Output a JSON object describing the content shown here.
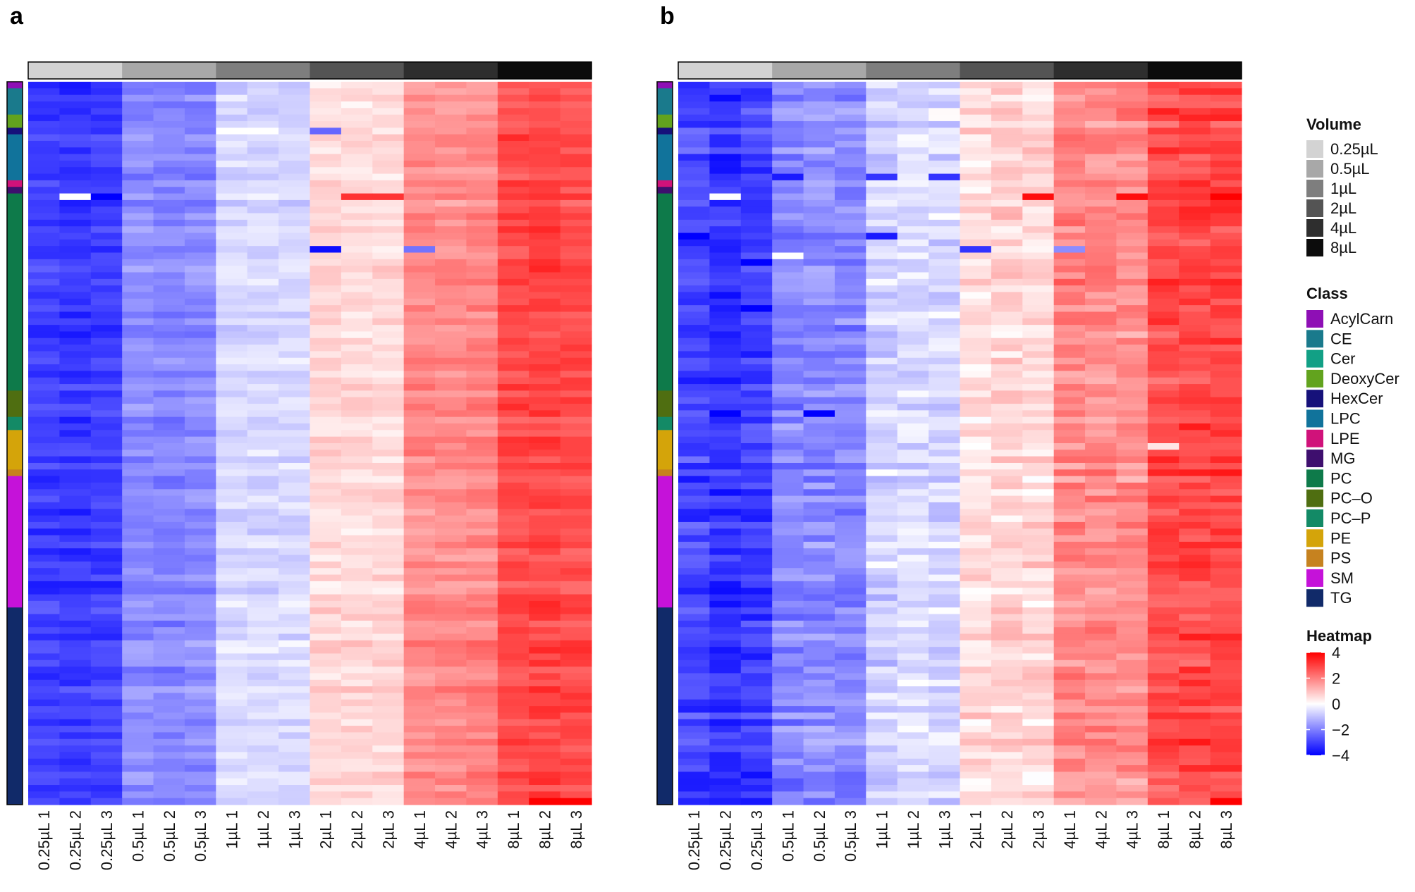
{
  "chart_data": {
    "type": "heatmap",
    "panels": [
      {
        "label": "a",
        "columns": [
          "0.25µL 1",
          "0.25µL 2",
          "0.25µL 3",
          "0.5µL 1",
          "0.5µL 2",
          "0.5µL 3",
          "1µL 1",
          "1µL 2",
          "1µL 3",
          "2µL 1",
          "2µL 2",
          "2µL 3",
          "4µL 1",
          "4µL 2",
          "4µL 3",
          "8µL 1",
          "8µL 2",
          "8µL 3"
        ],
        "column_volume": [
          "0.25µL",
          "0.25µL",
          "0.25µL",
          "0.5µL",
          "0.5µL",
          "0.5µL",
          "1µL",
          "1µL",
          "1µL",
          "2µL",
          "2µL",
          "2µL",
          "4µL",
          "4µL",
          "4µL",
          "8µL",
          "8µL",
          "8µL"
        ],
        "mean_by_column": [
          -3.0,
          -3.1,
          -3.0,
          -1.8,
          -1.9,
          -1.8,
          -0.6,
          -0.6,
          -0.6,
          0.6,
          0.6,
          0.6,
          1.8,
          1.8,
          1.9,
          2.8,
          2.9,
          2.8
        ],
        "outliers": [
          {
            "row": 17,
            "col": 1,
            "value": 0
          },
          {
            "row": 17,
            "col": 2,
            "value": -4
          },
          {
            "row": 17,
            "col": 10,
            "value": 3.2
          },
          {
            "row": 17,
            "col": 11,
            "value": 3.2
          },
          {
            "row": 25,
            "col": 9,
            "value": -3.8
          },
          {
            "row": 25,
            "col": 12,
            "value": -2.2
          },
          {
            "row": 7,
            "col": 9,
            "value": -2.4
          },
          {
            "row": 7,
            "col": 6,
            "value": 0
          },
          {
            "row": 7,
            "col": 7,
            "value": 0
          },
          {
            "row": 109,
            "col": 16,
            "value": 4
          },
          {
            "row": 109,
            "col": 17,
            "value": 4
          }
        ]
      },
      {
        "label": "b",
        "columns": [
          "0.25µL 1",
          "0.25µL 2",
          "0.25µL 3",
          "0.5µL 1",
          "0.5µL 2",
          "0.5µL 3",
          "1µL 1",
          "1µL 2",
          "1µL 3",
          "2µL 1",
          "2µL 2",
          "2µL 3",
          "4µL 1",
          "4µL 2",
          "4µL 3",
          "8µL 1",
          "8µL 2",
          "8µL 3"
        ],
        "column_volume": [
          "0.25µL",
          "0.25µL",
          "0.25µL",
          "0.5µL",
          "0.5µL",
          "0.5µL",
          "1µL",
          "1µL",
          "1µL",
          "2µL",
          "2µL",
          "2µL",
          "4µL",
          "4µL",
          "4µL",
          "8µL",
          "8µL",
          "8µL"
        ],
        "mean_by_column": [
          -2.9,
          -3.2,
          -3.0,
          -1.9,
          -1.8,
          -1.9,
          -0.7,
          -0.5,
          -0.6,
          0.5,
          0.7,
          0.6,
          1.9,
          1.8,
          1.8,
          2.8,
          2.9,
          2.9
        ],
        "outliers": [
          {
            "row": 17,
            "col": 1,
            "value": 0
          },
          {
            "row": 17,
            "col": 11,
            "value": 3.8
          },
          {
            "row": 17,
            "col": 14,
            "value": 3.8
          },
          {
            "row": 17,
            "col": 17,
            "value": 4
          },
          {
            "row": 23,
            "col": 0,
            "value": -4
          },
          {
            "row": 23,
            "col": 6,
            "value": -3.6
          },
          {
            "row": 25,
            "col": 9,
            "value": -3.2
          },
          {
            "row": 25,
            "col": 12,
            "value": -1.8
          },
          {
            "row": 26,
            "col": 3,
            "value": 0
          },
          {
            "row": 14,
            "col": 3,
            "value": -3.6
          },
          {
            "row": 14,
            "col": 6,
            "value": -3.2
          },
          {
            "row": 14,
            "col": 8,
            "value": -3.2
          },
          {
            "row": 50,
            "col": 1,
            "value": -4
          },
          {
            "row": 50,
            "col": 4,
            "value": -4
          },
          {
            "row": 27,
            "col": 2,
            "value": -4
          },
          {
            "row": 32,
            "col": 1,
            "value": -3.8
          },
          {
            "row": 34,
            "col": 2,
            "value": -4
          },
          {
            "row": 109,
            "col": 17,
            "value": 4
          },
          {
            "row": 55,
            "col": 15,
            "value": 0.4
          }
        ]
      }
    ],
    "n_rows": 110,
    "row_classes": [
      {
        "class": "AcylCarn",
        "rows": 1
      },
      {
        "class": "CE",
        "rows": 4
      },
      {
        "class": "DeoxyCer",
        "rows": 2
      },
      {
        "class": "HexCer",
        "rows": 1
      },
      {
        "class": "LPC",
        "rows": 7
      },
      {
        "class": "LPE",
        "rows": 1
      },
      {
        "class": "MG",
        "rows": 1
      },
      {
        "class": "PC",
        "rows": 30
      },
      {
        "class": "PC-O",
        "rows": 4
      },
      {
        "class": "PC-P",
        "rows": 2
      },
      {
        "class": "PE",
        "rows": 6
      },
      {
        "class": "PS",
        "rows": 1
      },
      {
        "class": "SM",
        "rows": 20
      },
      {
        "class": "TG",
        "rows": 30
      }
    ],
    "legends": {
      "volume": {
        "title": "Volume",
        "entries": [
          {
            "label": "0.25µL",
            "color": "#d3d3d3"
          },
          {
            "label": "0.5µL",
            "color": "#a8a8a8"
          },
          {
            "label": "1µL",
            "color": "#7e7e7e"
          },
          {
            "label": "2µL",
            "color": "#545454"
          },
          {
            "label": "4µL",
            "color": "#2e2e2e"
          },
          {
            "label": "8µL",
            "color": "#0c0c0c"
          }
        ]
      },
      "class": {
        "title": "Class",
        "entries": [
          {
            "label": "AcylCarn",
            "color": "#8e0fb5"
          },
          {
            "label": "CE",
            "color": "#1a7a8c"
          },
          {
            "label": "Cer",
            "color": "#12a085"
          },
          {
            "label": "DeoxyCer",
            "color": "#62a31e"
          },
          {
            "label": "HexCer",
            "color": "#16117a"
          },
          {
            "label": "LPC",
            "color": "#11739b"
          },
          {
            "label": "LPE",
            "color": "#d0127a"
          },
          {
            "label": "MG",
            "color": "#3e0f6e"
          },
          {
            "label": "PC",
            "color": "#0e7a4a"
          },
          {
            "label": "PC–O",
            "color": "#4f6e11"
          },
          {
            "label": "PC–P",
            "color": "#138a66"
          },
          {
            "label": "PE",
            "color": "#d4a40a"
          },
          {
            "label": "PS",
            "color": "#c6821f"
          },
          {
            "label": "SM",
            "color": "#c512d9"
          },
          {
            "label": "TG",
            "color": "#112a69"
          }
        ]
      },
      "heatmap": {
        "title": "Heatmap",
        "range": [
          -4,
          4
        ],
        "ticks": [
          {
            "value": 4,
            "label": "4"
          },
          {
            "value": 2,
            "label": "2"
          },
          {
            "value": 0,
            "label": "0"
          },
          {
            "value": -2,
            "label": "−2"
          },
          {
            "value": -4,
            "label": "−4"
          }
        ],
        "low_color": "#0000ff",
        "mid_color": "#ffffff",
        "high_color": "#ff0000"
      }
    }
  }
}
